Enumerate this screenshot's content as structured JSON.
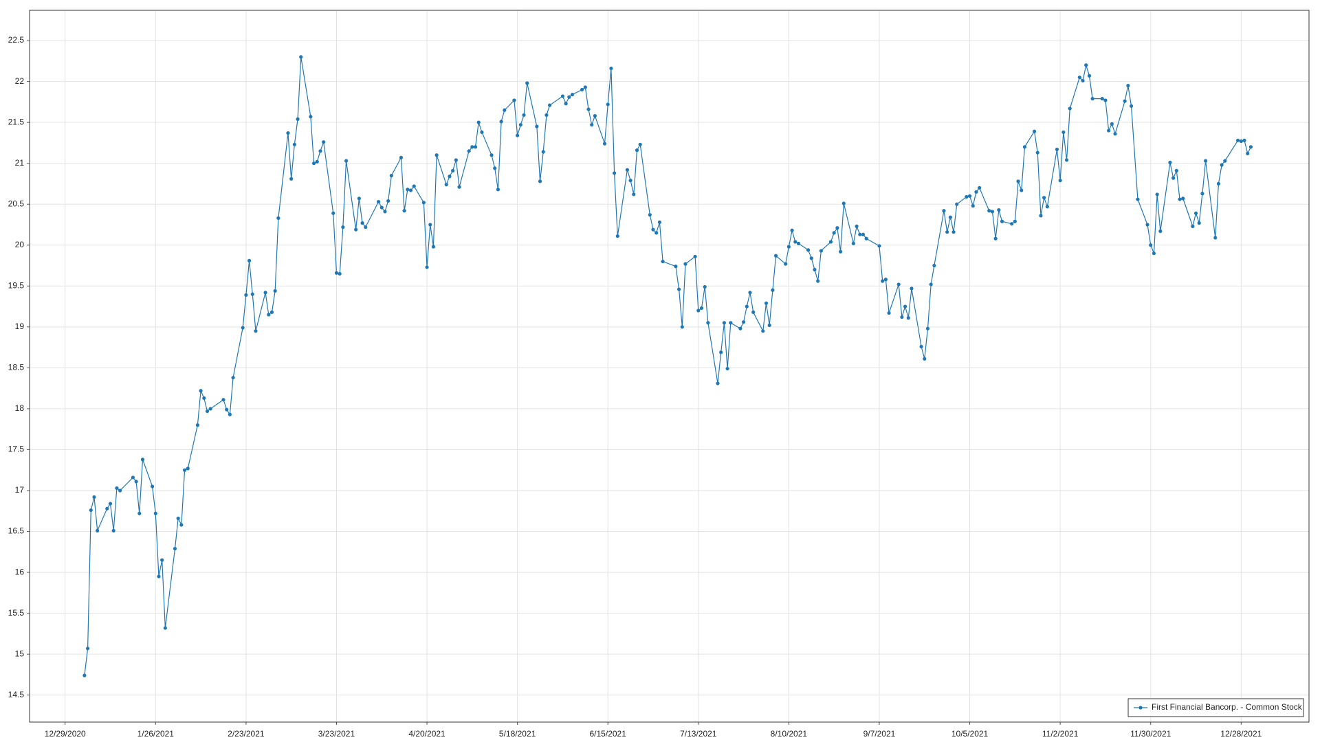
{
  "chart_data": {
    "type": "line",
    "x": [
      "1/4/2021",
      "1/5/2021",
      "1/6/2021",
      "1/7/2021",
      "1/8/2021",
      "1/11/2021",
      "1/12/2021",
      "1/13/2021",
      "1/14/2021",
      "1/15/2021",
      "1/19/2021",
      "1/20/2021",
      "1/21/2021",
      "1/22/2021",
      "1/25/2021",
      "1/26/2021",
      "1/27/2021",
      "1/28/2021",
      "1/29/2021",
      "2/1/2021",
      "2/2/2021",
      "2/3/2021",
      "2/4/2021",
      "2/5/2021",
      "2/8/2021",
      "2/9/2021",
      "2/10/2021",
      "2/11/2021",
      "2/12/2021",
      "2/16/2021",
      "2/17/2021",
      "2/18/2021",
      "2/19/2021",
      "2/22/2021",
      "2/23/2021",
      "2/24/2021",
      "2/25/2021",
      "2/26/2021",
      "3/1/2021",
      "3/2/2021",
      "3/3/2021",
      "3/4/2021",
      "3/5/2021",
      "3/8/2021",
      "3/9/2021",
      "3/10/2021",
      "3/11/2021",
      "3/12/2021",
      "3/15/2021",
      "3/16/2021",
      "3/17/2021",
      "3/18/2021",
      "3/19/2021",
      "3/22/2021",
      "3/23/2021",
      "3/24/2021",
      "3/25/2021",
      "3/26/2021",
      "3/29/2021",
      "3/30/2021",
      "3/31/2021",
      "4/1/2021",
      "4/5/2021",
      "4/6/2021",
      "4/7/2021",
      "4/8/2021",
      "4/9/2021",
      "4/12/2021",
      "4/13/2021",
      "4/14/2021",
      "4/15/2021",
      "4/16/2021",
      "4/19/2021",
      "4/20/2021",
      "4/21/2021",
      "4/22/2021",
      "4/23/2021",
      "4/26/2021",
      "4/27/2021",
      "4/28/2021",
      "4/29/2021",
      "4/30/2021",
      "5/3/2021",
      "5/4/2021",
      "5/5/2021",
      "5/6/2021",
      "5/7/2021",
      "5/10/2021",
      "5/11/2021",
      "5/12/2021",
      "5/13/2021",
      "5/14/2021",
      "5/17/2021",
      "5/18/2021",
      "5/19/2021",
      "5/20/2021",
      "5/21/2021",
      "5/24/2021",
      "5/25/2021",
      "5/26/2021",
      "5/27/2021",
      "5/28/2021",
      "6/1/2021",
      "6/2/2021",
      "6/3/2021",
      "6/4/2021",
      "6/7/2021",
      "6/8/2021",
      "6/9/2021",
      "6/10/2021",
      "6/11/2021",
      "6/14/2021",
      "6/15/2021",
      "6/16/2021",
      "6/17/2021",
      "6/18/2021",
      "6/21/2021",
      "6/22/2021",
      "6/23/2021",
      "6/24/2021",
      "6/25/2021",
      "6/28/2021",
      "6/29/2021",
      "6/30/2021",
      "7/1/2021",
      "7/2/2021",
      "7/6/2021",
      "7/7/2021",
      "7/8/2021",
      "7/9/2021",
      "7/12/2021",
      "7/13/2021",
      "7/14/2021",
      "7/15/2021",
      "7/16/2021",
      "7/19/2021",
      "7/20/2021",
      "7/21/2021",
      "7/22/2021",
      "7/23/2021",
      "7/26/2021",
      "7/27/2021",
      "7/28/2021",
      "7/29/2021",
      "7/30/2021",
      "8/2/2021",
      "8/3/2021",
      "8/4/2021",
      "8/5/2021",
      "8/6/2021",
      "8/9/2021",
      "8/10/2021",
      "8/11/2021",
      "8/12/2021",
      "8/13/2021",
      "8/16/2021",
      "8/17/2021",
      "8/18/2021",
      "8/19/2021",
      "8/20/2021",
      "8/23/2021",
      "8/24/2021",
      "8/25/2021",
      "8/26/2021",
      "8/27/2021",
      "8/30/2021",
      "8/31/2021",
      "9/1/2021",
      "9/2/2021",
      "9/3/2021",
      "9/7/2021",
      "9/8/2021",
      "9/9/2021",
      "9/10/2021",
      "9/13/2021",
      "9/14/2021",
      "9/15/2021",
      "9/16/2021",
      "9/17/2021",
      "9/20/2021",
      "9/21/2021",
      "9/22/2021",
      "9/23/2021",
      "9/24/2021",
      "9/27/2021",
      "9/28/2021",
      "9/29/2021",
      "9/30/2021",
      "10/1/2021",
      "10/4/2021",
      "10/5/2021",
      "10/6/2021",
      "10/7/2021",
      "10/8/2021",
      "10/11/2021",
      "10/12/2021",
      "10/13/2021",
      "10/14/2021",
      "10/15/2021",
      "10/18/2021",
      "10/19/2021",
      "10/20/2021",
      "10/21/2021",
      "10/22/2021",
      "10/25/2021",
      "10/26/2021",
      "10/27/2021",
      "10/28/2021",
      "10/29/2021",
      "11/1/2021",
      "11/2/2021",
      "11/3/2021",
      "11/4/2021",
      "11/5/2021",
      "11/8/2021",
      "11/9/2021",
      "11/10/2021",
      "11/11/2021",
      "11/12/2021",
      "11/15/2021",
      "11/16/2021",
      "11/17/2021",
      "11/18/2021",
      "11/19/2021",
      "11/22/2021",
      "11/23/2021",
      "11/24/2021",
      "11/26/2021",
      "11/29/2021",
      "11/30/2021",
      "12/1/2021",
      "12/2/2021",
      "12/3/2021",
      "12/6/2021",
      "12/7/2021",
      "12/8/2021",
      "12/9/2021",
      "12/10/2021",
      "12/13/2021",
      "12/14/2021",
      "12/15/2021",
      "12/16/2021",
      "12/17/2021",
      "12/20/2021",
      "12/21/2021",
      "12/22/2021",
      "12/23/2021",
      "12/27/2021",
      "12/28/2021",
      "12/29/2021",
      "12/30/2021",
      "12/31/2021"
    ],
    "series": [
      {
        "name": "First Financial Bancorp. - Common Stock",
        "color": "#1f77b4",
        "values": [
          14.74,
          15.07,
          16.76,
          16.92,
          16.51,
          16.78,
          16.84,
          16.51,
          17.03,
          17.0,
          17.16,
          17.11,
          16.72,
          17.38,
          17.05,
          16.72,
          15.95,
          16.15,
          15.32,
          16.29,
          16.66,
          16.58,
          17.25,
          17.27,
          17.8,
          18.22,
          18.13,
          17.97,
          18.0,
          18.11,
          17.99,
          17.93,
          18.38,
          18.99,
          19.39,
          19.81,
          19.4,
          18.95,
          19.42,
          19.15,
          19.18,
          19.44,
          20.33,
          21.37,
          20.81,
          21.23,
          21.54,
          22.3,
          21.57,
          21.0,
          21.02,
          21.15,
          21.26,
          20.39,
          19.66,
          19.65,
          20.22,
          21.03,
          20.19,
          20.57,
          20.27,
          20.22,
          20.53,
          20.46,
          20.41,
          20.54,
          20.85,
          21.07,
          20.42,
          20.68,
          20.67,
          20.72,
          20.52,
          19.73,
          20.25,
          19.98,
          21.1,
          20.74,
          20.84,
          20.91,
          21.04,
          20.71,
          21.15,
          21.2,
          21.2,
          21.5,
          21.38,
          21.1,
          20.94,
          20.68,
          21.51,
          21.65,
          21.77,
          21.34,
          21.47,
          21.59,
          21.98,
          21.45,
          20.78,
          21.14,
          21.59,
          21.71,
          21.82,
          21.73,
          21.81,
          21.84,
          21.9,
          21.93,
          21.66,
          21.47,
          21.58,
          21.24,
          21.72,
          22.16,
          20.88,
          20.11,
          20.92,
          20.79,
          20.62,
          21.16,
          21.23,
          20.37,
          20.19,
          20.15,
          20.28,
          19.8,
          19.74,
          19.46,
          19.0,
          19.77,
          19.86,
          19.2,
          19.23,
          19.49,
          19.05,
          18.31,
          18.69,
          19.05,
          18.49,
          19.05,
          18.98,
          19.06,
          19.25,
          19.42,
          19.18,
          18.95,
          19.29,
          19.02,
          19.45,
          19.87,
          19.77,
          19.98,
          20.18,
          20.04,
          20.02,
          19.94,
          19.84,
          19.7,
          19.56,
          19.93,
          20.04,
          20.15,
          20.21,
          19.92,
          20.51,
          20.02,
          20.23,
          20.13,
          20.13,
          20.08,
          19.99,
          19.56,
          19.58,
          19.17,
          19.52,
          19.12,
          19.25,
          19.11,
          19.47,
          18.76,
          18.61,
          18.98,
          19.52,
          19.75,
          20.42,
          20.16,
          20.34,
          20.16,
          20.5,
          20.59,
          20.6,
          20.48,
          20.65,
          20.7,
          20.42,
          20.41,
          20.08,
          20.43,
          20.29,
          20.26,
          20.29,
          20.78,
          20.67,
          21.2,
          21.39,
          21.13,
          20.36,
          20.58,
          20.47,
          21.17,
          20.79,
          21.38,
          21.04,
          21.67,
          22.05,
          22.01,
          22.2,
          22.07,
          21.79,
          21.79,
          21.77,
          21.4,
          21.48,
          21.36,
          21.76,
          21.95,
          21.7,
          20.56,
          20.25,
          20.0,
          19.9,
          20.62,
          20.17,
          21.01,
          20.82,
          20.91,
          20.56,
          20.57,
          20.23,
          20.39,
          20.27,
          20.63,
          21.03,
          20.09,
          20.75,
          20.98,
          21.03,
          21.28,
          21.27,
          21.28,
          21.12,
          21.2
        ]
      }
    ],
    "xlim": [
      "12/18/2020",
      "1/18/2022"
    ],
    "xticks": [
      "12/29/2020",
      "1/26/2021",
      "2/23/2021",
      "3/23/2021",
      "4/20/2021",
      "5/18/2021",
      "6/15/2021",
      "7/13/2021",
      "8/10/2021",
      "9/7/2021",
      "10/5/2021",
      "11/2/2021",
      "11/30/2021",
      "12/28/2021"
    ],
    "ylim": [
      14.17,
      22.87
    ],
    "yticks": [
      14.5,
      15,
      15.5,
      16,
      16.5,
      17,
      17.5,
      18,
      18.5,
      19,
      19.5,
      20,
      20.5,
      21,
      21.5,
      22,
      22.5
    ],
    "grid": true,
    "legend": "lower right",
    "markers": true
  }
}
